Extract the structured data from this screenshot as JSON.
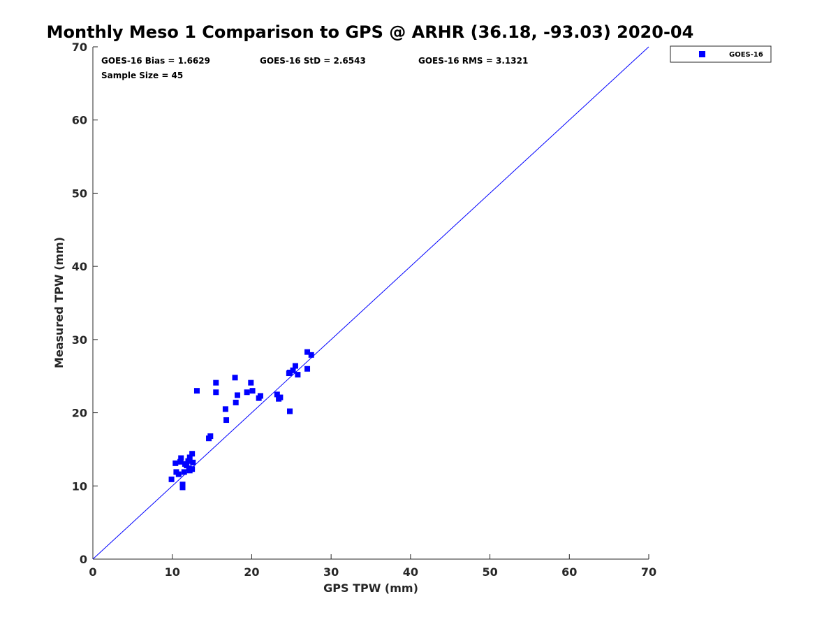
{
  "chart_data": {
    "type": "scatter",
    "title": "Monthly Meso 1 Comparison to GPS @ ARHR (36.18, -93.03) 2020-04",
    "xlabel": "GPS TPW (mm)",
    "ylabel": "Measured TPW (mm)",
    "xlim": [
      0,
      70
    ],
    "ylim": [
      0,
      70
    ],
    "xticks": [
      0,
      10,
      20,
      30,
      40,
      50,
      60,
      70
    ],
    "yticks": [
      0,
      10,
      20,
      30,
      40,
      50,
      60,
      70
    ],
    "xtick_labels": [
      "0",
      "10",
      "20",
      "30",
      "40",
      "50",
      "60",
      "70"
    ],
    "ytick_labels": [
      "0",
      "10",
      "20",
      "30",
      "40",
      "50",
      "60",
      "70"
    ],
    "grid": false,
    "legend_position": "outside-top-right",
    "reference_line": {
      "type": "1:1",
      "x": [
        0,
        70
      ],
      "y": [
        0,
        70
      ],
      "color": "#0000ff"
    },
    "annotations": [
      "GOES-16 Bias = 1.6629",
      "GOES-16 StD = 2.6543",
      "GOES-16 RMS = 3.1321",
      "Sample Size = 45"
    ],
    "series": [
      {
        "name": "GOES-16",
        "color": "#0000ff",
        "marker": "square",
        "points": [
          [
            9.9,
            10.9
          ],
          [
            10.4,
            13.1
          ],
          [
            10.5,
            11.9
          ],
          [
            10.8,
            11.6
          ],
          [
            11.0,
            13.3
          ],
          [
            11.1,
            13.8
          ],
          [
            11.3,
            10.2
          ],
          [
            11.3,
            9.8
          ],
          [
            11.5,
            11.9
          ],
          [
            11.6,
            13.0
          ],
          [
            11.8,
            12.8
          ],
          [
            12.0,
            13.4
          ],
          [
            12.1,
            12.4
          ],
          [
            12.2,
            12.1
          ],
          [
            12.2,
            13.9
          ],
          [
            12.5,
            14.4
          ],
          [
            12.5,
            12.3
          ],
          [
            12.6,
            13.2
          ],
          [
            13.1,
            23.0
          ],
          [
            14.6,
            16.5
          ],
          [
            14.8,
            16.8
          ],
          [
            15.5,
            24.1
          ],
          [
            15.5,
            22.8
          ],
          [
            16.7,
            20.5
          ],
          [
            16.8,
            19.0
          ],
          [
            17.9,
            24.8
          ],
          [
            18.0,
            21.4
          ],
          [
            18.2,
            22.4
          ],
          [
            19.4,
            22.8
          ],
          [
            19.9,
            24.1
          ],
          [
            20.1,
            23.0
          ],
          [
            20.9,
            22.0
          ],
          [
            21.1,
            22.3
          ],
          [
            23.2,
            22.5
          ],
          [
            23.4,
            21.9
          ],
          [
            23.6,
            22.1
          ],
          [
            24.7,
            25.4
          ],
          [
            24.8,
            20.2
          ],
          [
            25.2,
            25.8
          ],
          [
            25.5,
            26.4
          ],
          [
            25.8,
            25.2
          ],
          [
            27.0,
            28.3
          ],
          [
            27.0,
            26.0
          ],
          [
            27.5,
            27.9
          ],
          [
            24.8,
            25.5
          ]
        ]
      }
    ]
  }
}
